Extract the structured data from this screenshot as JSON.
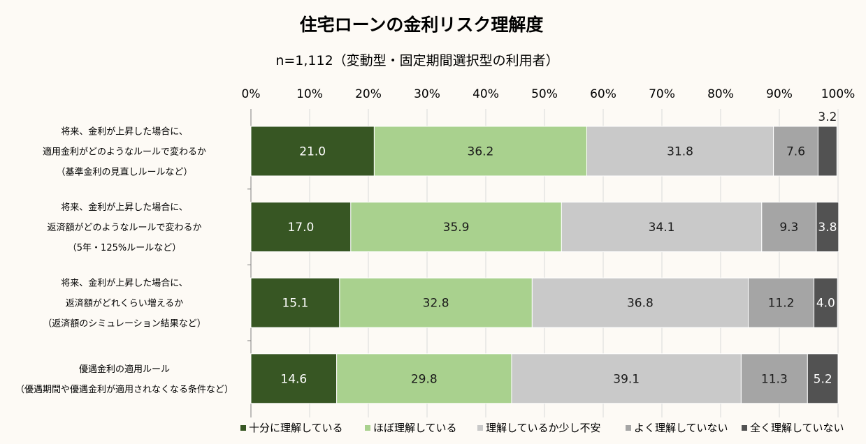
{
  "chart_data": {
    "type": "bar",
    "orientation": "horizontal",
    "stacked": true,
    "title": "住宅ローンの金利リスク理解度",
    "subtitle": "n=1,112（変動型・固定期間選択型の利用者）",
    "xlim": [
      0,
      100
    ],
    "x_ticks": [
      "0%",
      "10%",
      "20%",
      "30%",
      "40%",
      "50%",
      "60%",
      "70%",
      "80%",
      "90%",
      "100%"
    ],
    "legend_position": "bottom",
    "categories": [
      [
        "将来、金利が上昇した場合に、",
        "適用金利がどのようなルールで変わるか",
        "（基準金利の見直しルールなど）"
      ],
      [
        "将来、金利が上昇した場合に、",
        "返済額がどのようなルールで変わるか",
        "（5年・125%ルールなど）"
      ],
      [
        "将来、金利が上昇した場合に、",
        "返済額がどれくらい増えるか",
        "（返済額のシミュレーション結果など）"
      ],
      [
        "優遇金利の適用ルール",
        "（優遇期間や優遇金利が適用されなくなる条件など）"
      ]
    ],
    "series": [
      {
        "name": "十分に理解している",
        "color": "#375623",
        "text_color": "#ffffff",
        "values": [
          21.0,
          17.0,
          15.1,
          14.6
        ]
      },
      {
        "name": "ほぼ理解している",
        "color": "#a9d18e",
        "text_color": "#1a1a1a",
        "values": [
          36.2,
          35.9,
          32.8,
          29.8
        ]
      },
      {
        "name": "理解しているか少し不安",
        "color": "#c9c9c9",
        "text_color": "#1a1a1a",
        "values": [
          31.8,
          34.1,
          36.8,
          39.1
        ]
      },
      {
        "name": "よく理解していない",
        "color": "#a5a5a5",
        "text_color": "#1a1a1a",
        "values": [
          7.6,
          9.3,
          11.2,
          11.3
        ]
      },
      {
        "name": "全く理解していない",
        "color": "#525252",
        "text_color": "#ffffff",
        "values": [
          3.2,
          3.8,
          4.0,
          5.2
        ]
      }
    ],
    "value_labels": [
      [
        "21.0",
        "17.0",
        "15.1",
        "14.6"
      ],
      [
        "36.2",
        "35.9",
        "32.8",
        "29.8"
      ],
      [
        "31.8",
        "34.1",
        "36.8",
        "39.1"
      ],
      [
        "7.6",
        "9.3",
        "11.2",
        "11.3"
      ],
      [
        "3.2",
        "3.8",
        "4.0",
        "5.2"
      ]
    ],
    "label_outside": [
      [
        false,
        false,
        false,
        false
      ],
      [
        false,
        false,
        false,
        false
      ],
      [
        false,
        false,
        false,
        false
      ],
      [
        false,
        false,
        false,
        false
      ],
      [
        true,
        false,
        false,
        false
      ]
    ]
  }
}
